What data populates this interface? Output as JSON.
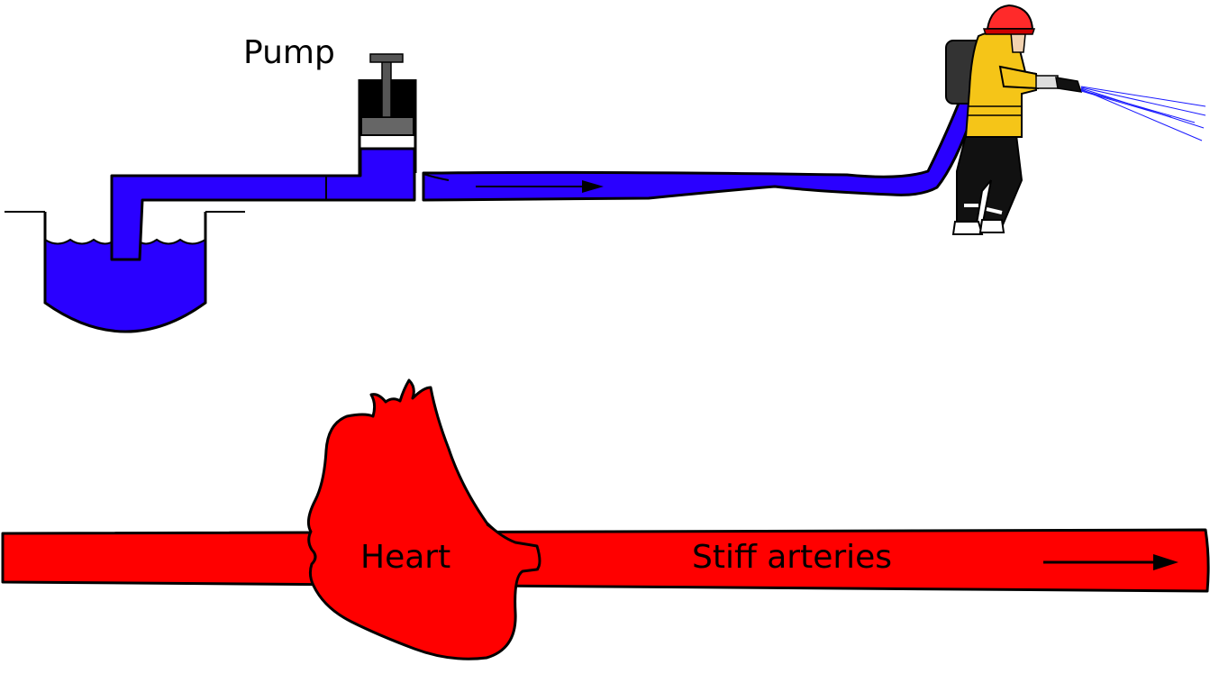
{
  "labels": {
    "pump": "Pump",
    "heart": "Heart",
    "arteries": "Stiff arteries"
  },
  "colors": {
    "water": "#2a00ff",
    "blood": "#ff0000",
    "helmet": "#ff2a2a",
    "coat": "#f5c518",
    "pump_gray": "#666666",
    "spray": "#1a1aff"
  },
  "icons": {
    "reservoir": "water-reservoir-icon",
    "pump": "piston-pump-icon",
    "firefighter": "firefighter-icon",
    "heart": "heart-icon"
  }
}
